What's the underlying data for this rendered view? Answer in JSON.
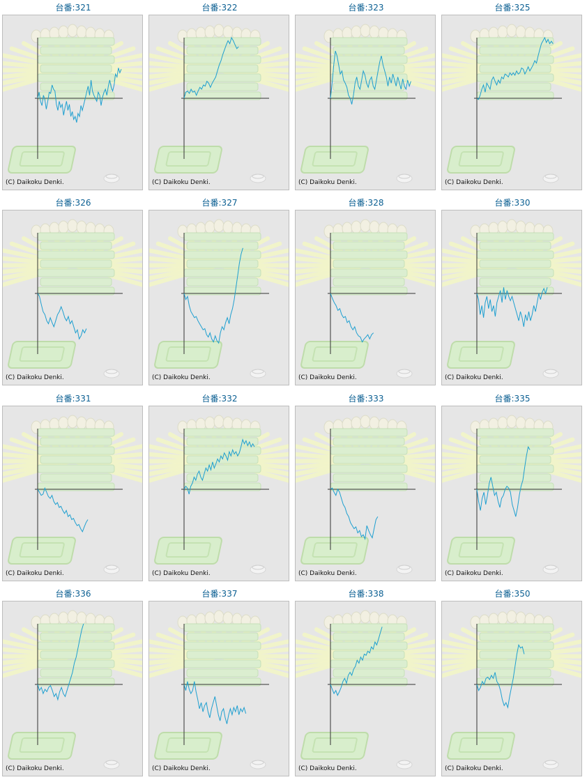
{
  "colors": {
    "line": "#1e9fd0",
    "axis": "#333333",
    "title": "#0b5f92",
    "panel": "#e6e6e6"
  },
  "chart_data": [
    {
      "type": "line",
      "title": "台番:321",
      "credit": "(C) Daikoku Denki.",
      "values": [
        0.0,
        0.1,
        -0.05,
        -0.12,
        0.05,
        -0.02,
        -0.18,
        -0.05,
        0.1,
        0.08,
        0.22,
        0.15,
        0.12,
        -0.1,
        -0.2,
        -0.05,
        -0.15,
        -0.1,
        -0.28,
        -0.15,
        -0.05,
        -0.2,
        -0.1,
        -0.3,
        -0.22,
        -0.35,
        -0.3,
        -0.4,
        -0.25,
        -0.3,
        -0.12,
        -0.2,
        -0.1,
        0.0,
        0.1,
        0.2,
        0.05,
        0.3,
        0.12,
        0.05,
        0.0,
        -0.05,
        0.1,
        0.05,
        -0.12,
        0.02,
        0.1,
        0.15,
        0.05,
        0.2,
        0.3,
        0.18,
        0.12,
        0.22,
        0.4,
        0.35,
        0.5,
        0.42,
        0.48
      ]
    },
    {
      "type": "line",
      "title": "台番:322",
      "credit": "(C) Daikoku Denki.",
      "values": [
        0.0,
        0.1,
        0.12,
        0.08,
        0.15,
        0.1,
        0.12,
        0.05,
        0.12,
        0.18,
        0.15,
        0.22,
        0.2,
        0.28,
        0.25,
        0.18,
        0.25,
        0.3,
        0.35,
        0.45,
        0.55,
        0.62,
        0.72,
        0.8,
        0.88,
        0.95,
        0.9,
        1.0,
        0.95,
        0.88,
        0.82,
        0.85
      ]
    },
    {
      "type": "line",
      "title": "台番:323",
      "credit": "(C) Daikoku Denki.",
      "values": [
        0.0,
        0.25,
        0.55,
        0.78,
        0.7,
        0.55,
        0.4,
        0.45,
        0.3,
        0.25,
        0.18,
        0.05,
        0.0,
        -0.1,
        0.05,
        0.25,
        0.35,
        0.2,
        0.15,
        0.3,
        0.45,
        0.38,
        0.25,
        0.18,
        0.3,
        0.35,
        0.2,
        0.15,
        0.3,
        0.45,
        0.6,
        0.7,
        0.55,
        0.45,
        0.35,
        0.2,
        0.35,
        0.25,
        0.4,
        0.3,
        0.2,
        0.35,
        0.25,
        0.15,
        0.32,
        0.2,
        0.15,
        0.3,
        0.2,
        0.28
      ]
    },
    {
      "type": "line",
      "title": "台番:325",
      "credit": "(C) Daikoku Denki.",
      "values": [
        0.0,
        -0.02,
        0.05,
        0.15,
        0.22,
        0.1,
        0.25,
        0.2,
        0.15,
        0.3,
        0.35,
        0.28,
        0.22,
        0.3,
        0.25,
        0.35,
        0.32,
        0.4,
        0.38,
        0.35,
        0.42,
        0.38,
        0.42,
        0.38,
        0.45,
        0.4,
        0.42,
        0.5,
        0.48,
        0.4,
        0.45,
        0.52,
        0.45,
        0.5,
        0.55,
        0.62,
        0.58,
        0.7,
        0.8,
        0.9,
        0.95,
        1.0,
        0.92,
        0.97,
        0.9,
        0.94,
        0.9
      ]
    },
    {
      "type": "line",
      "title": "台番:326",
      "credit": "(C) Daikoku Denki.",
      "values": [
        0.0,
        -0.05,
        -0.18,
        -0.3,
        -0.35,
        -0.45,
        -0.5,
        -0.4,
        -0.48,
        -0.55,
        -0.45,
        -0.35,
        -0.3,
        -0.22,
        -0.3,
        -0.4,
        -0.45,
        -0.38,
        -0.5,
        -0.45,
        -0.55,
        -0.65,
        -0.6,
        -0.75,
        -0.7,
        -0.6,
        -0.65,
        -0.58
      ]
    },
    {
      "type": "line",
      "title": "台番:327",
      "credit": "(C) Daikoku Denki.",
      "values": [
        0.0,
        -0.1,
        -0.05,
        -0.2,
        -0.3,
        -0.35,
        -0.4,
        -0.38,
        -0.45,
        -0.5,
        -0.55,
        -0.6,
        -0.58,
        -0.68,
        -0.72,
        -0.65,
        -0.75,
        -0.8,
        -0.7,
        -0.78,
        -0.82,
        -0.65,
        -0.55,
        -0.6,
        -0.48,
        -0.4,
        -0.5,
        -0.35,
        -0.25,
        -0.1,
        0.1,
        0.3,
        0.5,
        0.65,
        0.75
      ]
    },
    {
      "type": "line",
      "title": "台番:328",
      "credit": "(C) Daikoku Denki.",
      "values": [
        0.0,
        -0.08,
        -0.15,
        -0.2,
        -0.28,
        -0.25,
        -0.35,
        -0.4,
        -0.38,
        -0.48,
        -0.45,
        -0.55,
        -0.6,
        -0.55,
        -0.65,
        -0.7,
        -0.72,
        -0.8,
        -0.75,
        -0.72,
        -0.68,
        -0.75,
        -0.68,
        -0.65
      ]
    },
    {
      "type": "line",
      "title": "台番:330",
      "credit": "(C) Daikoku Denki.",
      "values": [
        0.0,
        -0.1,
        -0.35,
        -0.2,
        -0.4,
        -0.15,
        -0.05,
        -0.25,
        -0.1,
        -0.3,
        -0.2,
        -0.38,
        -0.15,
        -0.05,
        0.05,
        -0.15,
        0.1,
        -0.1,
        0.05,
        -0.05,
        -0.12,
        -0.05,
        -0.15,
        -0.25,
        -0.35,
        -0.45,
        -0.3,
        -0.4,
        -0.55,
        -0.35,
        -0.45,
        -0.3,
        -0.45,
        -0.35,
        -0.2,
        -0.3,
        -0.15,
        0.0,
        -0.1,
        0.02,
        0.08,
        0.0,
        0.1
      ]
    },
    {
      "type": "line",
      "title": "台番:331",
      "credit": "(C) Daikoku Denki.",
      "values": [
        0.0,
        -0.05,
        -0.1,
        -0.08,
        0.02,
        -0.05,
        -0.12,
        -0.15,
        -0.1,
        -0.2,
        -0.25,
        -0.22,
        -0.3,
        -0.28,
        -0.35,
        -0.4,
        -0.35,
        -0.45,
        -0.42,
        -0.5,
        -0.48,
        -0.55,
        -0.6,
        -0.58,
        -0.65,
        -0.7,
        -0.62,
        -0.55,
        -0.5
      ]
    },
    {
      "type": "line",
      "title": "台番:332",
      "credit": "(C) Daikoku Denki.",
      "values": [
        0.0,
        0.05,
        0.02,
        -0.08,
        0.05,
        0.1,
        0.2,
        0.15,
        0.25,
        0.3,
        0.2,
        0.15,
        0.25,
        0.35,
        0.3,
        0.4,
        0.32,
        0.45,
        0.35,
        0.42,
        0.5,
        0.45,
        0.55,
        0.5,
        0.6,
        0.55,
        0.48,
        0.62,
        0.55,
        0.65,
        0.58,
        0.62,
        0.55,
        0.6,
        0.7,
        0.82,
        0.75,
        0.8,
        0.72,
        0.78,
        0.7,
        0.75,
        0.7
      ]
    },
    {
      "type": "line",
      "title": "台番:333",
      "credit": "(C) Daikoku Denki.",
      "values": [
        0.0,
        0.02,
        -0.05,
        -0.1,
        0.0,
        -0.05,
        -0.15,
        -0.25,
        -0.3,
        -0.4,
        -0.45,
        -0.55,
        -0.6,
        -0.65,
        -0.62,
        -0.72,
        -0.68,
        -0.78,
        -0.75,
        -0.82,
        -0.6,
        -0.68,
        -0.75,
        -0.8,
        -0.65,
        -0.5,
        -0.45
      ]
    },
    {
      "type": "line",
      "title": "台番:335",
      "credit": "(C) Daikoku Denki.",
      "values": [
        0.0,
        -0.2,
        -0.35,
        -0.15,
        -0.05,
        -0.25,
        -0.1,
        0.1,
        0.2,
        0.05,
        -0.1,
        -0.05,
        -0.2,
        -0.3,
        -0.15,
        -0.1,
        0.0,
        0.05,
        0.02,
        -0.05,
        -0.25,
        -0.35,
        -0.45,
        -0.3,
        -0.1,
        0.05,
        0.15,
        0.35,
        0.55,
        0.7,
        0.65
      ]
    },
    {
      "type": "line",
      "title": "台番:336",
      "credit": "(C) Daikoku Denki.",
      "values": [
        0.0,
        -0.1,
        -0.05,
        -0.15,
        -0.08,
        -0.12,
        -0.05,
        -0.02,
        -0.1,
        -0.2,
        -0.15,
        -0.25,
        -0.12,
        -0.05,
        -0.15,
        -0.2,
        -0.1,
        0.0,
        0.1,
        0.2,
        0.35,
        0.45,
        0.6,
        0.75,
        0.9,
        1.0
      ]
    },
    {
      "type": "line",
      "title": "台番:337",
      "credit": "(C) Daikoku Denki.",
      "values": [
        0.0,
        -0.1,
        0.05,
        -0.08,
        -0.15,
        -0.1,
        0.05,
        -0.12,
        -0.25,
        -0.4,
        -0.3,
        -0.45,
        -0.35,
        -0.3,
        -0.45,
        -0.55,
        -0.4,
        -0.3,
        -0.2,
        -0.35,
        -0.5,
        -0.6,
        -0.45,
        -0.4,
        -0.55,
        -0.65,
        -0.5,
        -0.4,
        -0.5,
        -0.38,
        -0.45,
        -0.35,
        -0.5,
        -0.4,
        -0.45,
        -0.38,
        -0.48
      ]
    },
    {
      "type": "line",
      "title": "台番:338",
      "credit": "(C) Daikoku Denki.",
      "values": [
        0.0,
        -0.08,
        -0.15,
        -0.1,
        -0.18,
        -0.12,
        -0.05,
        0.05,
        0.1,
        0.02,
        0.15,
        0.2,
        0.15,
        0.25,
        0.3,
        0.4,
        0.35,
        0.45,
        0.4,
        0.5,
        0.48,
        0.55,
        0.52,
        0.62,
        0.58,
        0.7,
        0.65,
        0.75,
        0.85,
        0.95
      ]
    },
    {
      "type": "line",
      "title": "台番:350",
      "credit": "(C) Daikoku Denki.",
      "values": [
        0.0,
        -0.1,
        -0.05,
        0.05,
        0.0,
        0.1,
        0.12,
        0.08,
        0.15,
        0.1,
        0.2,
        0.05,
        0.0,
        -0.1,
        -0.25,
        -0.35,
        -0.3,
        -0.38,
        -0.2,
        -0.05,
        0.1,
        0.3,
        0.5,
        0.65,
        0.6,
        0.62,
        0.5
      ]
    }
  ]
}
